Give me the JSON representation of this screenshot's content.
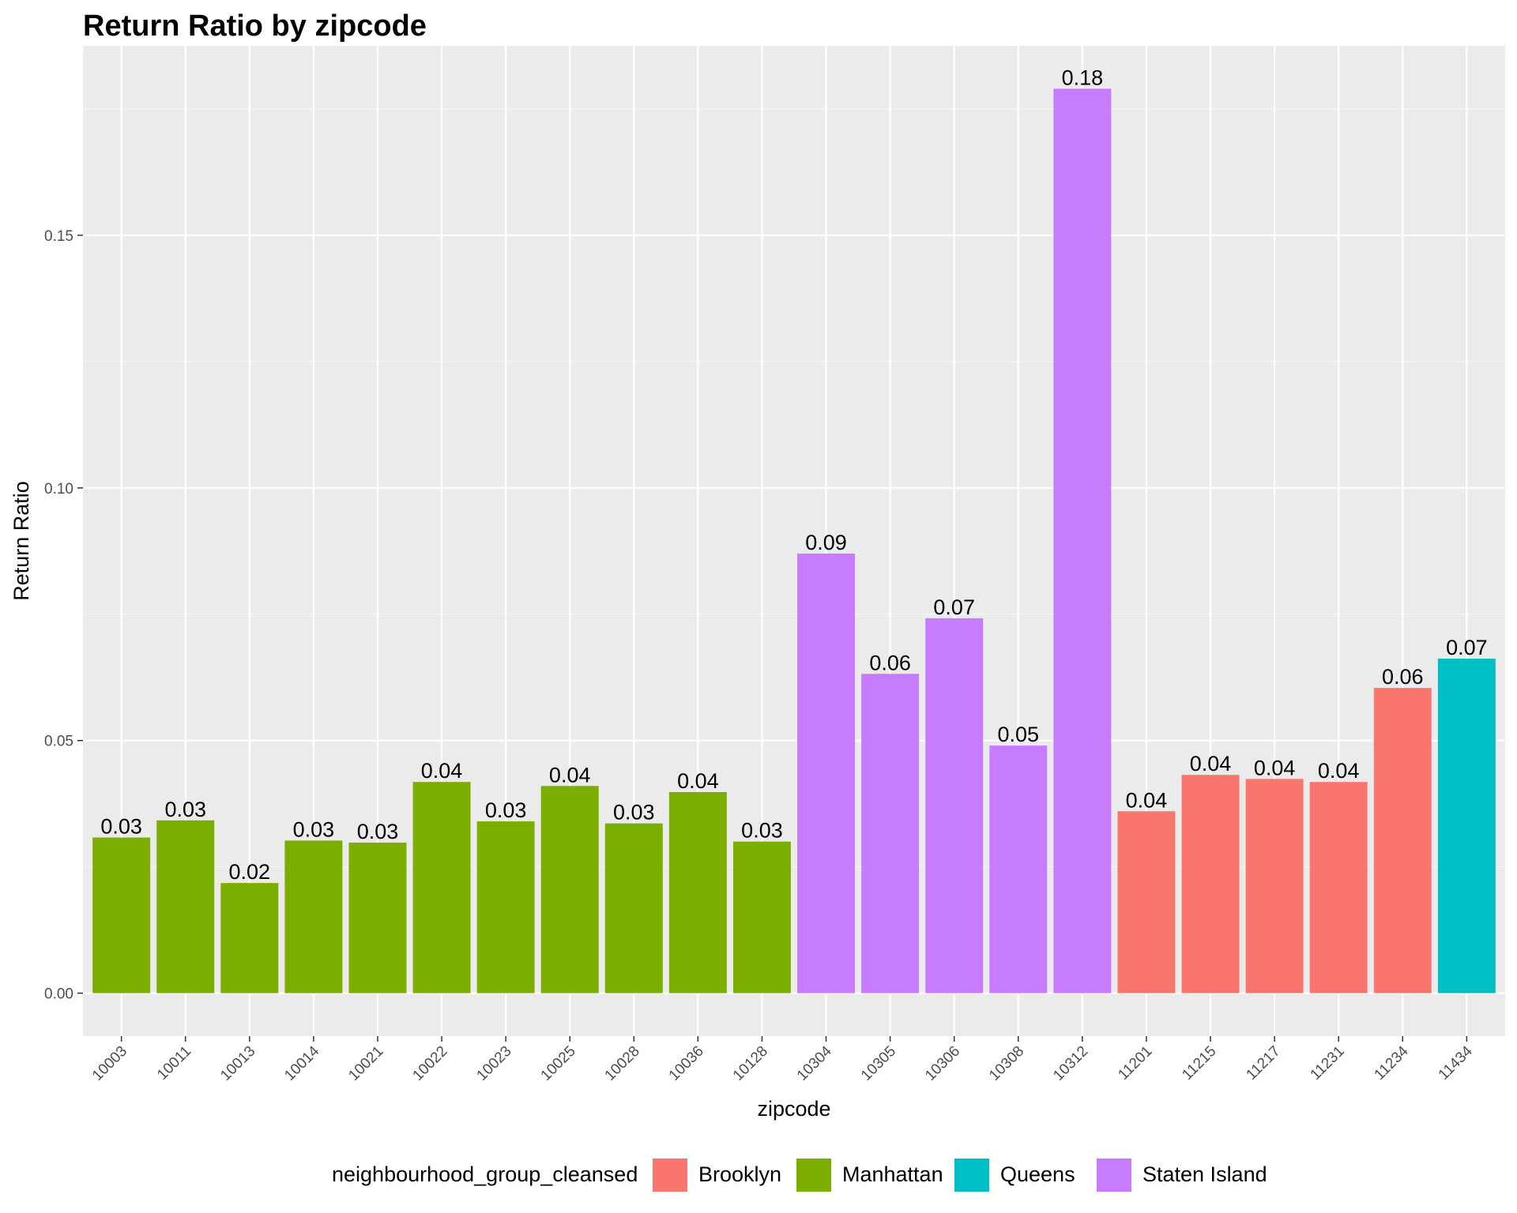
{
  "chart_data": {
    "type": "bar",
    "title": "Return Ratio by zipcode",
    "xlabel": "zipcode",
    "ylabel": "Return Ratio",
    "ylim": [
      -0.0085,
      0.1875
    ],
    "yticks": [
      0.0,
      0.05,
      0.1,
      0.15
    ],
    "ytick_labels": [
      "0.00",
      "0.05",
      "0.10",
      "0.15"
    ],
    "grid": true,
    "legend_position": "bottom",
    "legend_title": "neighbourhood_group_cleansed",
    "groups": [
      {
        "name": "Brooklyn",
        "color": "#F8766D"
      },
      {
        "name": "Manhattan",
        "color": "#7CAE00"
      },
      {
        "name": "Queens",
        "color": "#00BFC4"
      },
      {
        "name": "Staten Island",
        "color": "#C77CFF"
      }
    ],
    "categories": [
      "10003",
      "10011",
      "10013",
      "10014",
      "10021",
      "10022",
      "10023",
      "10025",
      "10028",
      "10036",
      "10128",
      "10304",
      "10305",
      "10306",
      "10308",
      "10312",
      "11201",
      "11215",
      "11217",
      "11231",
      "11234",
      "11434"
    ],
    "values": [
      0.0308,
      0.0342,
      0.0218,
      0.0302,
      0.0298,
      0.0418,
      0.034,
      0.041,
      0.0336,
      0.0398,
      0.03,
      0.087,
      0.0632,
      0.0742,
      0.049,
      0.179,
      0.036,
      0.0432,
      0.0424,
      0.0418,
      0.0604,
      0.0662
    ],
    "value_labels": [
      "0.03",
      "0.03",
      "0.02",
      "0.03",
      "0.03",
      "0.04",
      "0.03",
      "0.04",
      "0.03",
      "0.04",
      "0.03",
      "0.09",
      "0.06",
      "0.07",
      "0.05",
      "0.18",
      "0.04",
      "0.04",
      "0.04",
      "0.04",
      "0.06",
      "0.07"
    ],
    "bar_groups": [
      "Manhattan",
      "Manhattan",
      "Manhattan",
      "Manhattan",
      "Manhattan",
      "Manhattan",
      "Manhattan",
      "Manhattan",
      "Manhattan",
      "Manhattan",
      "Manhattan",
      "Staten Island",
      "Staten Island",
      "Staten Island",
      "Staten Island",
      "Staten Island",
      "Brooklyn",
      "Brooklyn",
      "Brooklyn",
      "Brooklyn",
      "Brooklyn",
      "Queens"
    ]
  },
  "colors": {
    "panel_background": "#EBEBEB",
    "grid_major": "#FFFFFF",
    "grid_minor": "#F5F5F5",
    "tick_color": "#333333"
  }
}
